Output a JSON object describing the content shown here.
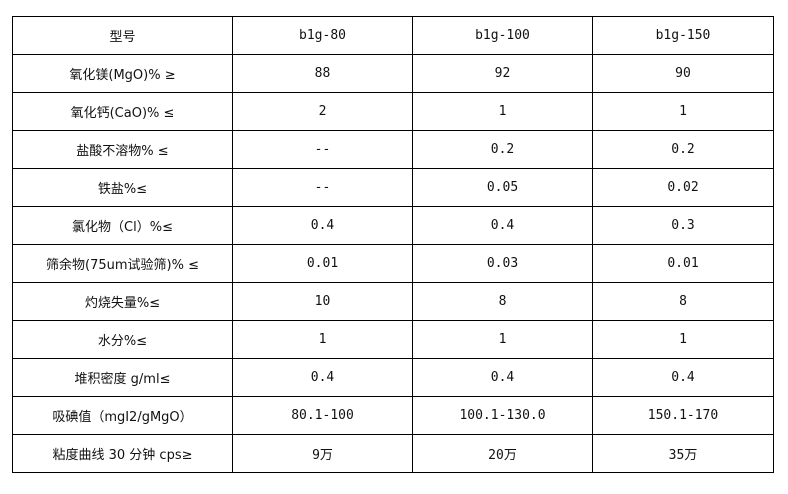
{
  "table": {
    "header": [
      "型号",
      "b1g-80",
      "b1g-100",
      "b1g-150"
    ],
    "rows": [
      [
        "氧化镁(MgO)% ≥",
        "88",
        "92",
        "90"
      ],
      [
        "氧化钙(CaO)% ≤",
        "2",
        "1",
        "1"
      ],
      [
        "盐酸不溶物% ≤",
        "--",
        "0.2",
        "0.2"
      ],
      [
        "铁盐%≤",
        "--",
        "0.05",
        "0.02"
      ],
      [
        "氯化物（Cl）%≤",
        "0.4",
        "0.4",
        "0.3"
      ],
      [
        "筛余物(75um试验筛)% ≤",
        "0.01",
        "0.03",
        "0.01"
      ],
      [
        "灼烧失量%≤",
        "10",
        "8",
        "8"
      ],
      [
        "水分%≤",
        "1",
        "1",
        "1"
      ],
      [
        "堆积密度 g/ml≤",
        "0.4",
        "0.4",
        "0.4"
      ],
      [
        "吸碘值（mgI2/gMgO）",
        "80.1-100",
        "100.1-130.0",
        "150.1-170"
      ],
      [
        "粘度曲线 30 分钟 cps≥",
        "9万",
        "20万",
        "35万"
      ]
    ]
  }
}
